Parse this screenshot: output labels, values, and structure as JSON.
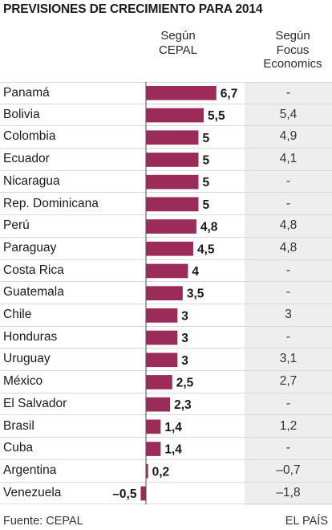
{
  "title": "PREVISIONES DE CRECIMIENTO PARA 2014",
  "column_headers": {
    "cepal": [
      "Según",
      "CEPAL"
    ],
    "focus": [
      "Según",
      "Focus",
      "Economics"
    ]
  },
  "colors": {
    "bar": "#9b2c5a",
    "zero_line": "#4d4d4d",
    "panel": "#eeeeee"
  },
  "chart_data": {
    "type": "bar",
    "orientation": "horizontal",
    "categories": [
      "Panamá",
      "Bolivia",
      "Colombia",
      "Ecuador",
      "Nicaragua",
      "Rep. Dominicana",
      "Perú",
      "Paraguay",
      "Costa Rica",
      "Guatemala",
      "Chile",
      "Honduras",
      "Uruguay",
      "México",
      "El Salvador",
      "Brasil",
      "Cuba",
      "Argentina",
      "Venezuela"
    ],
    "series": [
      {
        "values": [
          6.7,
          5.5,
          5,
          5,
          5,
          5,
          4.8,
          4.5,
          4,
          3.5,
          3,
          3,
          3,
          2.5,
          2.3,
          1.4,
          1.4,
          0.2,
          -0.5
        ],
        "labels": [
          "6,7",
          "5,5",
          "5",
          "5",
          "5",
          "5",
          "4,8",
          "4,5",
          "4",
          "3,5",
          "3",
          "3",
          "3",
          "2,5",
          "2,3",
          "1,4",
          "1,4",
          "0,2",
          "–0,5"
        ]
      },
      {
        "values": [
          null,
          5.4,
          4.9,
          4.1,
          null,
          null,
          4.8,
          4.8,
          null,
          null,
          3,
          null,
          3.1,
          2.7,
          null,
          1.2,
          null,
          -0.7,
          -1.8
        ],
        "labels": [
          "-",
          "5,4",
          "4,9",
          "4,1",
          "-",
          "-",
          "4,8",
          "4,8",
          "-",
          "-",
          "3",
          "-",
          "3,1",
          "2,7",
          "-",
          "1,2",
          "-",
          "–0,7",
          "–1,8"
        ]
      }
    ],
    "grid": false
  },
  "footer": {
    "source": "Fuente: CEPAL",
    "brand": "EL PAÍS"
  }
}
